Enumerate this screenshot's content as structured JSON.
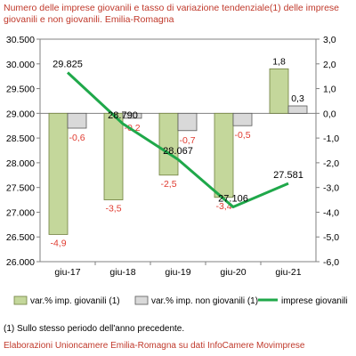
{
  "title": "Numero delle imprese giovanili e tasso di variazione tendenziale(1) delle imprese giovanili e non giovanili. Emilia-Romagna",
  "footnote": "(1) Sullo stesso periodo dell'anno precedente.",
  "source": "Elaborazioni Unioncamere Emilia-Romagna su dati InfoCamere Movimprese",
  "chart_data": {
    "type": "bar",
    "categories": [
      "giu-17",
      "giu-18",
      "giu-19",
      "giu-20",
      "giu-21"
    ],
    "series": [
      {
        "name": "var.% imp. giovanili (1)",
        "type": "bar",
        "axis": "right",
        "values": [
          -4.9,
          -3.5,
          -2.5,
          -3.4,
          1.8
        ],
        "labels": [
          "-4,9",
          "-3,5",
          "-2,5",
          "-3,4",
          "1,8"
        ]
      },
      {
        "name": "var.% imp. non giovanili (1)",
        "type": "bar",
        "axis": "right",
        "values": [
          -0.6,
          -0.2,
          -0.7,
          -0.5,
          0.3
        ],
        "labels": [
          "-0,6",
          "-0,2",
          "-0,7",
          "-0,5",
          "0,3"
        ]
      },
      {
        "name": "imprese giovanili",
        "type": "line",
        "axis": "left",
        "values": [
          29825,
          28790,
          28067,
          27106,
          27581
        ],
        "labels": [
          "29.825",
          "28.790",
          "28.067",
          "27.106",
          "27.581"
        ]
      }
    ],
    "left_axis": {
      "min": 26000,
      "max": 30500,
      "step": 500,
      "tick_labels": [
        "26.000",
        "26.500",
        "27.000",
        "27.500",
        "28.000",
        "28.500",
        "29.000",
        "29.500",
        "30.000",
        "30.500"
      ]
    },
    "right_axis": {
      "min": -6,
      "max": 3,
      "step": 1,
      "tick_labels": [
        "-6,0",
        "-5,0",
        "-4,0",
        "-3,0",
        "-2,0",
        "-1,0",
        "0,0",
        "1,0",
        "2,0",
        "3,0"
      ]
    },
    "grid": false,
    "legend_position": "bottom",
    "colors": {
      "bar_young": "#c4d79b",
      "bar_young_stroke": "#6f7f3f",
      "bar_other": "#d9d9d9",
      "bar_other_stroke": "#595959",
      "line": "#1fa84a",
      "neg_label": "#e03c31",
      "pos_label": "#000000",
      "axis": "#808080"
    }
  }
}
